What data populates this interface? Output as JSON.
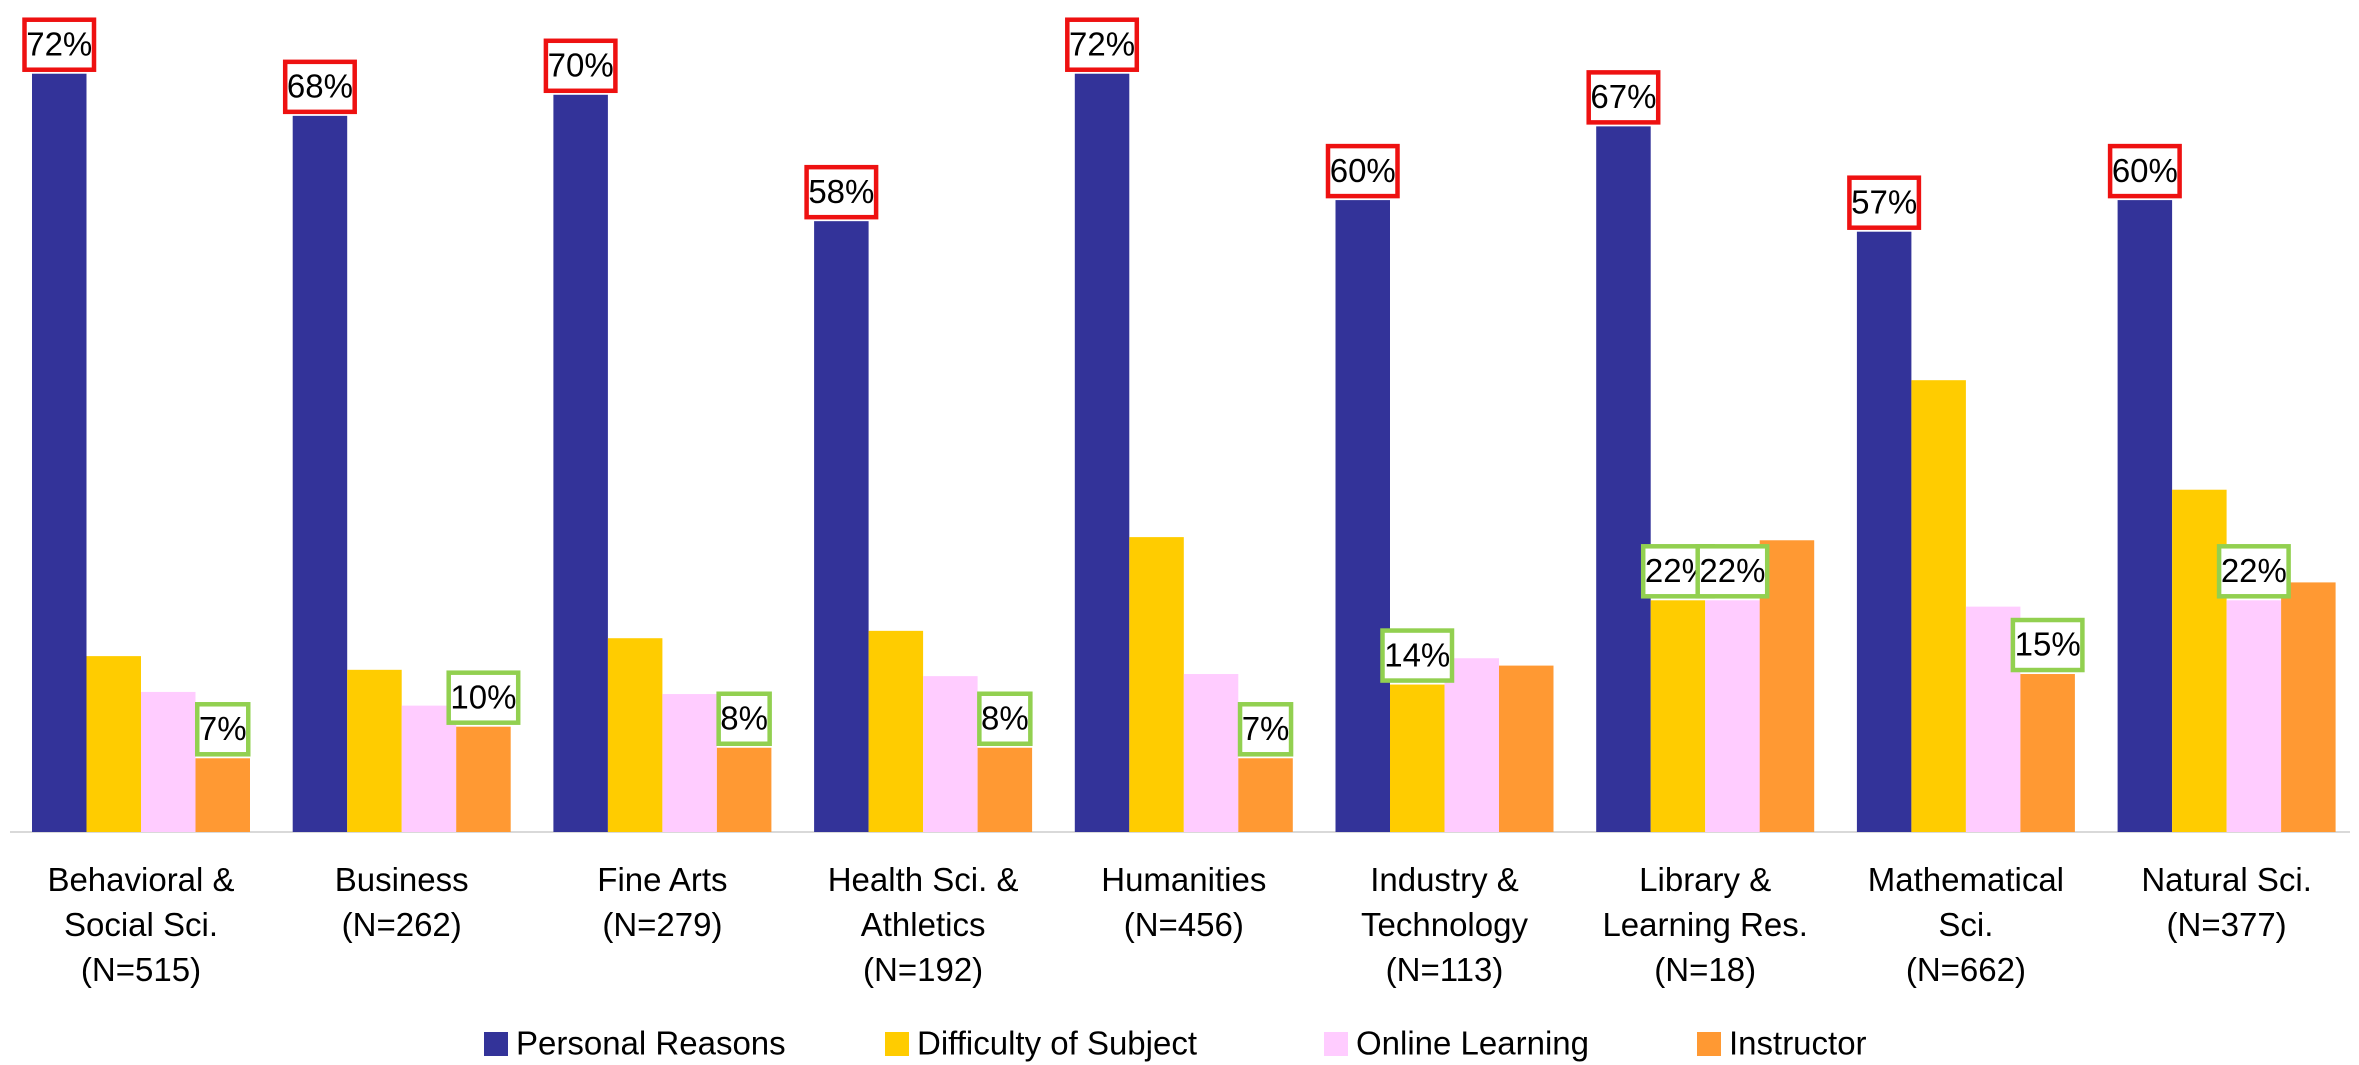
{
  "chart_data": {
    "type": "bar",
    "categories": [
      "Behavioral &\nSocial Sci.\n(N=515)",
      "Business\n(N=262)",
      "Fine Arts\n(N=279)",
      "Health Sci. &\nAthletics\n(N=192)",
      "Humanities\n(N=456)",
      "Industry &\nTechnology\n(N=113)",
      "Library &\nLearning Res.\n(N=18)",
      "Mathematical\nSci.\n(N=662)",
      "Natural Sci.\n(N=377)"
    ],
    "series": [
      {
        "name": "Personal Reasons",
        "color": "#333399",
        "label_box_color": "#ee1111",
        "values": [
          72,
          68,
          70,
          58,
          72,
          60,
          67,
          57,
          60
        ],
        "value_labels": [
          "72%",
          "68%",
          "70%",
          "58%",
          "72%",
          "60%",
          "67%",
          "57%",
          "60%"
        ]
      },
      {
        "name": "Difficulty of Subject",
        "color": "#ffcc00",
        "label_box_color": "#92d050",
        "values": [
          16.7,
          15.4,
          18.4,
          19.1,
          28,
          14,
          22,
          42.9,
          32.5
        ],
        "value_labels": [
          null,
          null,
          null,
          null,
          null,
          "14%",
          "22%",
          null,
          null
        ]
      },
      {
        "name": "Online Learning",
        "color": "#ffccff",
        "label_box_color": "#92d050",
        "values": [
          13.3,
          12,
          13.1,
          14.8,
          15,
          16.5,
          22,
          21.4,
          22
        ],
        "value_labels": [
          null,
          null,
          null,
          null,
          null,
          null,
          "22%",
          null,
          "22%"
        ]
      },
      {
        "name": "Instructor",
        "color": "#ff9933",
        "label_box_color": "#92d050",
        "values": [
          7,
          10,
          8,
          8,
          7,
          15.8,
          27.7,
          15,
          23.7
        ],
        "value_labels": [
          "7%",
          "10%",
          "8%",
          "8%",
          "7%",
          null,
          null,
          "15%",
          null
        ]
      }
    ],
    "ylim": [
      0,
      79
    ]
  }
}
